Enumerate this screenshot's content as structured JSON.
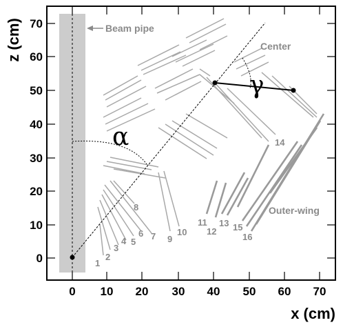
{
  "axes": {
    "xlabel": "x (cm)",
    "ylabel": "z (cm)",
    "xticks": [
      "0",
      "10",
      "20",
      "30",
      "40",
      "50",
      "60",
      "70"
    ],
    "yticks": [
      "0",
      "10",
      "20",
      "30",
      "40",
      "50",
      "60",
      "70"
    ]
  },
  "labels": {
    "beam_pipe": "Beam pipe",
    "center": "Center",
    "outer_wing": "Outer-wing",
    "alpha": "α",
    "gamma": "γ"
  },
  "layer_numbers": [
    "1",
    "2",
    "3",
    "4",
    "5",
    "6",
    "7",
    "8",
    "9",
    "10",
    "11",
    "12",
    "13",
    "14",
    "15",
    "16"
  ],
  "colors": {
    "beam_pipe_fill": "#cccccc",
    "detector_gray": "#a8a8a8",
    "label_gray": "#8a8a8a"
  }
}
